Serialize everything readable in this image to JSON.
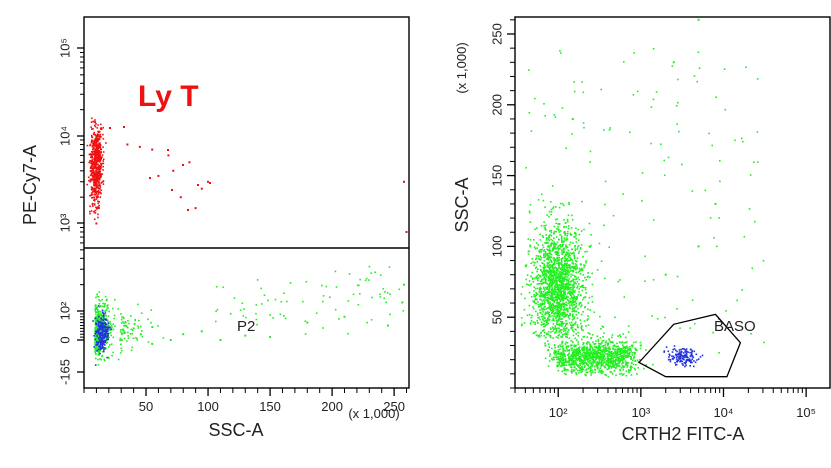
{
  "colors": {
    "population_green": "#22ee22",
    "population_blue": "#2233dd",
    "population_red": "#ee1111",
    "axis": "#000000",
    "label_text": "#222222"
  },
  "chart_data": [
    {
      "type": "scatter",
      "title": "",
      "xlabel": "SSC-A",
      "xscale_note": "(x 1,000)",
      "ylabel": "PE-Cy7-A",
      "xlim": [
        0,
        262
      ],
      "ylim": [
        -165,
        100000
      ],
      "yscale": "biexponential",
      "x_ticks": [
        "50",
        "100",
        "150",
        "200",
        "250"
      ],
      "y_ticks": [
        "-165",
        "0",
        "10²",
        "10³",
        "10⁴",
        "10⁵"
      ],
      "gate_threshold_y": 500,
      "annotations": [
        {
          "text": "Ly T",
          "color": "#ee1111",
          "x": 40,
          "y": 30000
        },
        {
          "text": "P2",
          "color": "#222222",
          "x": 125,
          "y": 0
        }
      ],
      "series": [
        {
          "name": "Ly T",
          "color": "#ee1111",
          "points": [
            [
              10,
              4000
            ],
            [
              12,
              8000
            ],
            [
              9,
              2500
            ],
            [
              14,
              12000
            ],
            [
              11,
              1500
            ],
            [
              13,
              6000
            ],
            [
              10,
              1000
            ],
            [
              15,
              3000
            ],
            [
              35,
              8000
            ],
            [
              45,
              7500
            ],
            [
              55,
              7000
            ],
            [
              60,
              3500
            ],
            [
              68,
              6000
            ],
            [
              72,
              4000
            ],
            [
              78,
              2000
            ],
            [
              85,
              5000
            ],
            [
              90,
              1500
            ],
            [
              95,
              2500
            ],
            [
              100,
              3000
            ],
            [
              258,
              3000
            ],
            [
              260,
              800
            ]
          ]
        },
        {
          "name": "P2",
          "color": "#22ee22",
          "points": [
            [
              70,
              0
            ],
            [
              80,
              20
            ],
            [
              55,
              -20
            ],
            [
              95,
              30
            ],
            [
              110,
              0
            ],
            [
              40,
              40
            ],
            [
              130,
              15
            ],
            [
              150,
              10
            ],
            [
              180,
              60
            ],
            [
              210,
              80
            ],
            [
              245,
              50
            ],
            [
              258,
              200
            ]
          ]
        },
        {
          "name": "",
          "color": "#2233dd",
          "points": [
            [
              12,
              0
            ],
            [
              14,
              -40
            ],
            [
              10,
              30
            ],
            [
              15,
              60
            ],
            [
              13,
              -80
            ]
          ]
        }
      ]
    },
    {
      "type": "scatter",
      "title": "",
      "xlabel": "CRTH2 FITC-A",
      "ylabel": "SSC-A",
      "yscale_note": "(x 1,000)",
      "xscale": "log",
      "xlim": [
        30,
        200000
      ],
      "ylim": [
        0,
        262
      ],
      "x_ticks": [
        "10²",
        "10³",
        "10⁴",
        "10⁵"
      ],
      "y_ticks": [
        "50",
        "100",
        "150",
        "200",
        "250"
      ],
      "annotations": [
        {
          "text": "BASO",
          "color": "#222222",
          "x": 12000,
          "y": 62
        }
      ],
      "gate": {
        "name": "BASO",
        "polygon": [
          [
            950,
            18
          ],
          [
            2500,
            45
          ],
          [
            8000,
            52
          ],
          [
            16000,
            32
          ],
          [
            11000,
            8
          ],
          [
            2000,
            8
          ]
        ]
      },
      "series": [
        {
          "name": "",
          "color": "#22ee22",
          "points": [
            [
              60,
              70
            ],
            [
              80,
              60
            ],
            [
              100,
              90
            ],
            [
              120,
              110
            ],
            [
              70,
              30
            ],
            [
              150,
              25
            ],
            [
              300,
              25
            ],
            [
              500,
              20
            ],
            [
              1000,
              30
            ],
            [
              2000,
              80
            ],
            [
              5000,
              100
            ],
            [
              8000,
              130
            ],
            [
              150,
              190
            ],
            [
              2500,
              230
            ],
            [
              5000,
              260
            ]
          ]
        },
        {
          "name": "BASO",
          "color": "#2233dd",
          "points": [
            [
              2500,
              22
            ],
            [
              3000,
              25
            ],
            [
              3500,
              20
            ],
            [
              4000,
              24
            ],
            [
              3200,
              18
            ],
            [
              4500,
              22
            ]
          ]
        }
      ]
    }
  ]
}
